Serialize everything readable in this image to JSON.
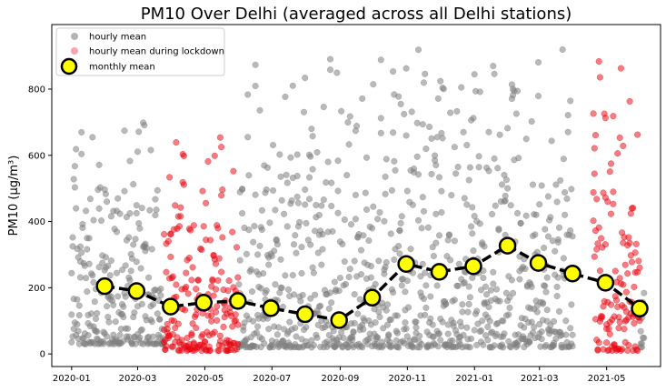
{
  "chart_data": {
    "type": "scatter",
    "title": "PM10 Over Delhi (averaged across all Delhi stations)",
    "ylabel": "PM10 (μg/m³)",
    "xlabel": "",
    "x_range": [
      "2019-12-14",
      "2021-06-19"
    ],
    "ylim": [
      -38,
      995
    ],
    "x_ticks": [
      "2020-01",
      "2020-03",
      "2020-05",
      "2020-07",
      "2020-09",
      "2020-11",
      "2021-01",
      "2021-03",
      "2021-05"
    ],
    "y_ticks": [
      0,
      200,
      400,
      600,
      800
    ],
    "grid": false,
    "legend_position": "top-left",
    "series": [
      {
        "name": "hourly mean",
        "color": "#808080",
        "marker": "circle",
        "bands": [
          {
            "start": "2020-01-01",
            "end": "2020-03-24",
            "min": 30,
            "max": 750
          },
          {
            "start": "2020-06-01",
            "end": "2021-03-31",
            "min": 20,
            "max": 930
          },
          {
            "start": "2021-06-01",
            "end": "2021-06-04",
            "min": 20,
            "max": 220
          }
        ]
      },
      {
        "name": "hourly mean during lockdown",
        "color": "#e8000b",
        "marker": "circle",
        "bands": [
          {
            "start": "2020-03-25",
            "end": "2020-05-31",
            "min": 10,
            "max": 715
          },
          {
            "start": "2021-04-19",
            "end": "2021-05-31",
            "min": 10,
            "max": 950
          }
        ]
      },
      {
        "name": "monthly mean",
        "color": "#ffff00",
        "edgecolor": "#000000",
        "linestyle": "dashed",
        "points": [
          {
            "x": "2020-01-31",
            "y": 205
          },
          {
            "x": "2020-02-29",
            "y": 190
          },
          {
            "x": "2020-03-31",
            "y": 143
          },
          {
            "x": "2020-04-30",
            "y": 155
          },
          {
            "x": "2020-05-31",
            "y": 160
          },
          {
            "x": "2020-06-30",
            "y": 138
          },
          {
            "x": "2020-07-31",
            "y": 120
          },
          {
            "x": "2020-08-31",
            "y": 102
          },
          {
            "x": "2020-09-30",
            "y": 170
          },
          {
            "x": "2020-10-31",
            "y": 272
          },
          {
            "x": "2020-11-30",
            "y": 248
          },
          {
            "x": "2020-12-31",
            "y": 265
          },
          {
            "x": "2021-01-31",
            "y": 327
          },
          {
            "x": "2021-02-28",
            "y": 275
          },
          {
            "x": "2021-03-31",
            "y": 243
          },
          {
            "x": "2021-04-30",
            "y": 215
          },
          {
            "x": "2021-05-31",
            "y": 137
          }
        ]
      }
    ]
  }
}
